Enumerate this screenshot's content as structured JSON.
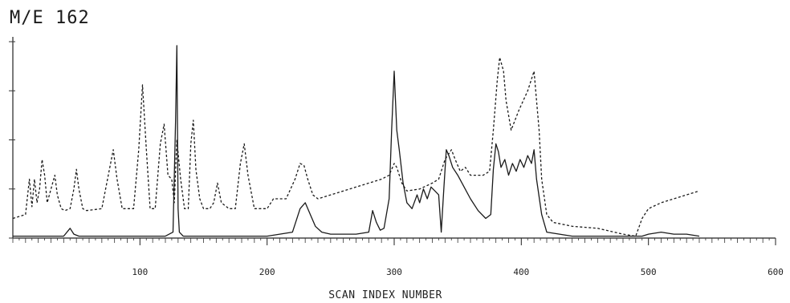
{
  "chart_data": {
    "type": "line",
    "title": "M/E 162",
    "xlabel": "SCAN INDEX NUMBER",
    "ylabel": "",
    "xlim": [
      0,
      600
    ],
    "ylim": [
      0,
      100
    ],
    "xticks": [
      100,
      200,
      300,
      400,
      500,
      600
    ],
    "grid": false,
    "series": [
      {
        "style": "solid",
        "x": [
          0,
          40,
          45,
          48,
          52,
          60,
          110,
          120,
          126,
          128,
          129,
          130,
          131,
          134,
          150,
          200,
          220,
          226,
          230,
          234,
          238,
          243,
          250,
          270,
          280,
          283,
          286,
          289,
          292,
          296,
          298,
          300,
          302,
          304,
          307,
          310,
          314,
          318,
          320,
          323,
          326,
          329,
          332,
          335,
          337,
          339,
          341,
          343,
          346,
          350,
          355,
          360,
          366,
          372,
          376,
          378,
          380,
          382,
          384,
          387,
          390,
          393,
          396,
          399,
          402,
          405,
          408,
          410,
          412,
          416,
          420,
          440,
          460,
          480,
          490,
          495,
          500,
          510,
          520,
          530,
          540
        ],
        "values": [
          1,
          1,
          5,
          2,
          1,
          1,
          1,
          1,
          3,
          60,
          98,
          15,
          3,
          1,
          1,
          1,
          3,
          15,
          18,
          12,
          6,
          3,
          2,
          2,
          3,
          14,
          8,
          4,
          5,
          20,
          55,
          85,
          55,
          45,
          28,
          18,
          15,
          22,
          18,
          25,
          20,
          26,
          24,
          22,
          3,
          25,
          45,
          42,
          36,
          32,
          26,
          20,
          14,
          10,
          12,
          35,
          48,
          44,
          36,
          40,
          32,
          38,
          34,
          40,
          36,
          42,
          38,
          45,
          30,
          12,
          3,
          1,
          1,
          1,
          1,
          1,
          2,
          3,
          2,
          2,
          1
        ]
      },
      {
        "style": "dashed",
        "x": [
          0,
          10,
          13,
          15,
          17,
          19,
          21,
          23,
          25,
          27,
          30,
          33,
          35,
          38,
          41,
          45,
          48,
          50,
          52,
          55,
          58,
          70,
          76,
          79,
          82,
          86,
          95,
          99,
          102,
          105,
          108,
          112,
          116,
          119,
          122,
          125,
          127,
          129,
          132,
          135,
          138,
          140,
          142,
          144,
          147,
          150,
          155,
          158,
          161,
          164,
          170,
          175,
          179,
          182,
          185,
          190,
          200,
          205,
          215,
          222,
          226,
          229,
          232,
          236,
          240,
          250,
          260,
          270,
          280,
          290,
          296,
          300,
          302,
          306,
          310,
          320,
          330,
          335,
          340,
          345,
          348,
          352,
          356,
          360,
          370,
          375,
          378,
          381,
          383,
          386,
          388,
          392,
          398,
          405,
          410,
          412,
          414,
          416,
          420,
          425,
          440,
          460,
          480,
          490,
          495,
          500,
          510,
          520,
          530,
          540
        ],
        "values": [
          10,
          12,
          30,
          16,
          30,
          18,
          25,
          40,
          32,
          18,
          25,
          32,
          22,
          15,
          14,
          15,
          25,
          35,
          25,
          15,
          14,
          15,
          35,
          45,
          30,
          15,
          15,
          45,
          78,
          45,
          15,
          15,
          48,
          58,
          32,
          30,
          18,
          50,
          30,
          15,
          15,
          48,
          60,
          35,
          20,
          15,
          15,
          18,
          28,
          18,
          15,
          15,
          38,
          48,
          32,
          15,
          15,
          20,
          20,
          30,
          38,
          37,
          30,
          22,
          20,
          22,
          24,
          26,
          28,
          30,
          32,
          38,
          36,
          28,
          24,
          25,
          28,
          30,
          40,
          45,
          40,
          34,
          36,
          32,
          32,
          34,
          55,
          80,
          92,
          85,
          70,
          55,
          65,
          75,
          85,
          70,
          55,
          30,
          12,
          8,
          6,
          5,
          2,
          1,
          10,
          15,
          18,
          20,
          22,
          24
        ]
      }
    ]
  }
}
